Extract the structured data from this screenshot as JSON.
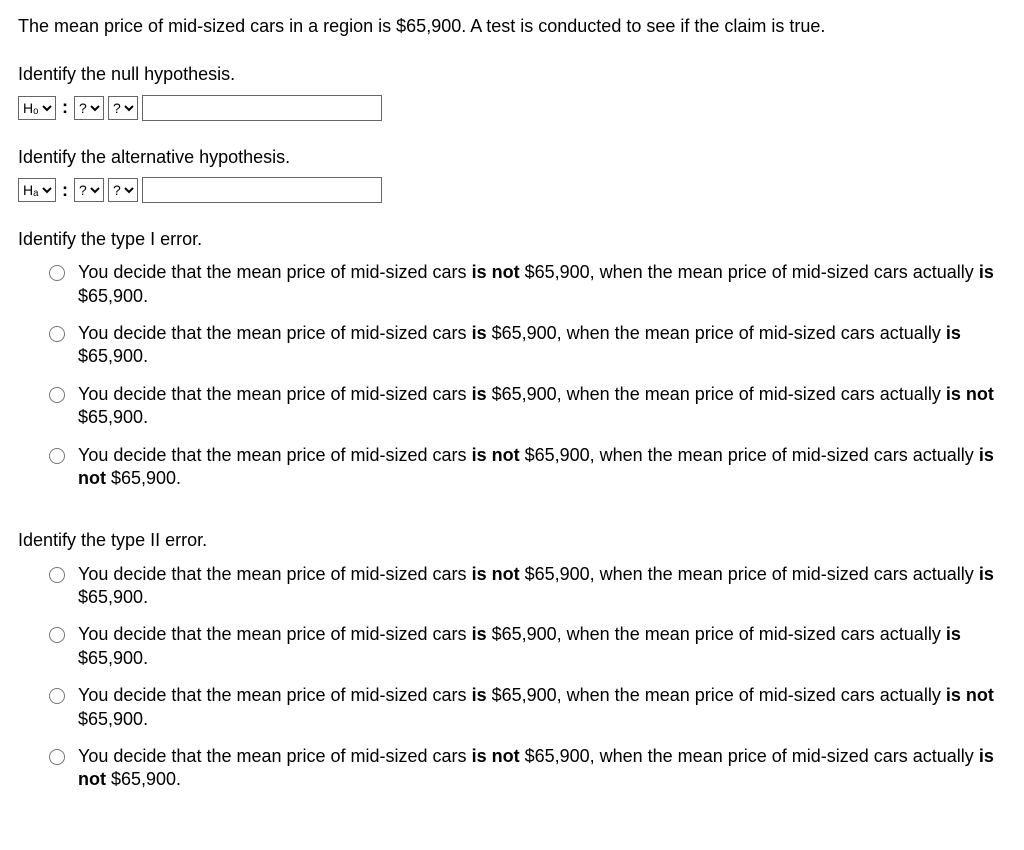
{
  "intro": "The mean price of mid-sized cars in a region is $65,900. A test is conducted to see if the claim is true.",
  "null_hyp": {
    "prompt": "Identify the null hypothesis.",
    "select1": "Hₒ",
    "select2": "?",
    "select3": "?",
    "value": ""
  },
  "alt_hyp": {
    "prompt": "Identify the alternative hypothesis.",
    "select1": "Hₐ",
    "select2": "?",
    "select3": "?",
    "value": ""
  },
  "type1": {
    "prompt": "Identify the type I error.",
    "options": [
      "You decide that the mean price of mid-sized cars <b>is not</b> $65,900, when the mean price of mid-sized cars actually <b>is</b> $65,900.",
      "You decide that the mean price of mid-sized cars <b>is</b> $65,900, when the mean price of mid-sized cars actually <b>is</b> $65,900.",
      "You decide that the mean price of mid-sized cars <b>is</b> $65,900, when the mean price of mid-sized cars actually <b>is not</b> $65,900.",
      "You decide that the mean price of mid-sized cars <b>is not</b> $65,900, when the mean price of mid-sized cars actually <b>is not</b> $65,900."
    ]
  },
  "type2": {
    "prompt": "Identify the type II error.",
    "options": [
      "You decide that the mean price of mid-sized cars <b>is not</b> $65,900, when the mean price of mid-sized cars actually <b>is</b> $65,900.",
      "You decide that the mean price of mid-sized cars <b>is</b> $65,900, when the mean price of mid-sized cars actually <b>is</b> $65,900.",
      "You decide that the mean price of mid-sized cars <b>is</b> $65,900, when the mean price of mid-sized cars actually <b>is not</b> $65,900.",
      "You decide that the mean price of mid-sized cars <b>is not</b> $65,900, when the mean price of mid-sized cars actually <b>is not</b> $65,900."
    ]
  }
}
